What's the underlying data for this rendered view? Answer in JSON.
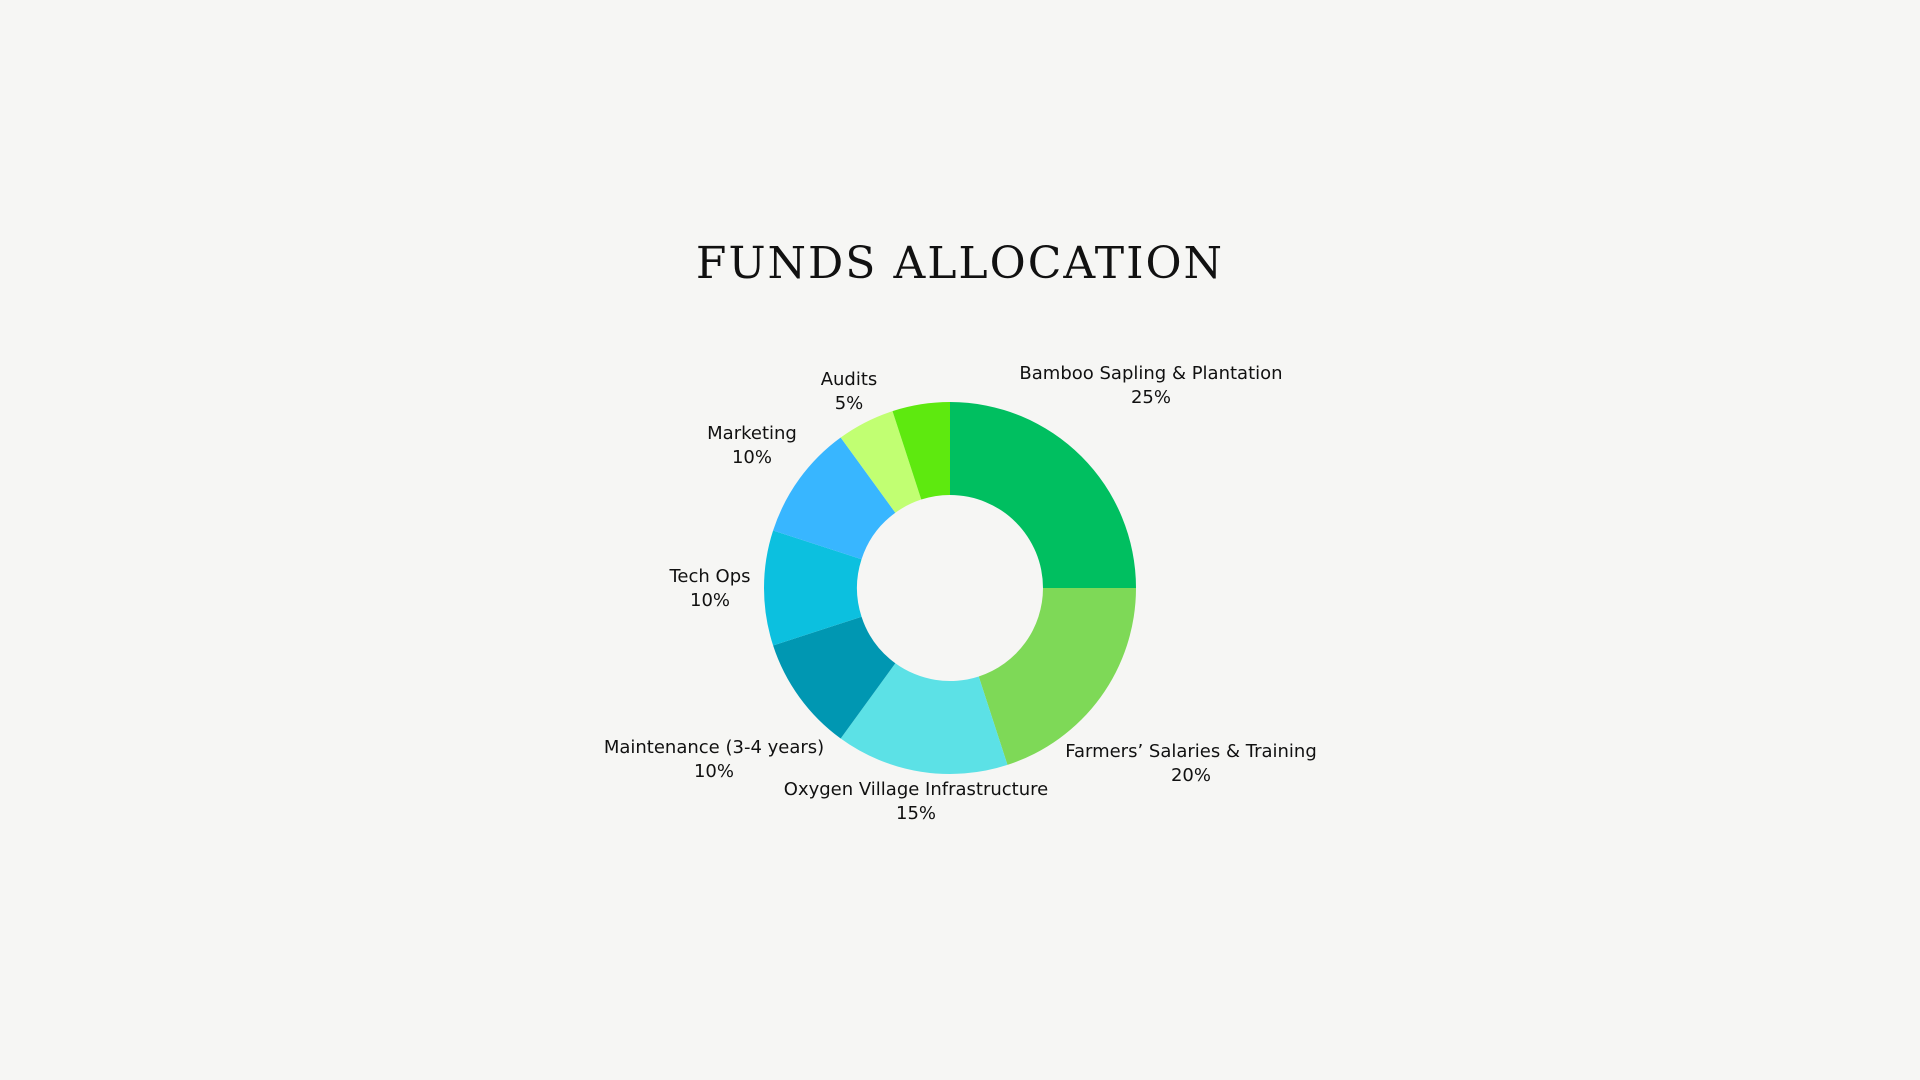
{
  "chart_data": {
    "type": "pie",
    "variant": "donut",
    "title": "FUNDS ALLOCATION",
    "legend": "none",
    "slices": [
      {
        "label": "Bamboo Sapling & Plantation",
        "value": 25,
        "value_label": "25%",
        "color": "#00bf60"
      },
      {
        "label": "Farmers’ Salaries & Training",
        "value": 20,
        "value_label": "20%",
        "color": "#7ed957"
      },
      {
        "label": "Oxygen Village Infrastructure",
        "value": 15,
        "value_label": "15%",
        "color": "#5ce1e6"
      },
      {
        "label": "Maintenance (3-4 years)",
        "value": 10,
        "value_label": "10%",
        "color": "#0097b2"
      },
      {
        "label": "Tech Ops",
        "value": 10,
        "value_label": "10%",
        "color": "#0cc0df"
      },
      {
        "label": "Marketing",
        "value": 10,
        "value_label": "10%",
        "color": "#38b6ff"
      },
      {
        "label": "Audits",
        "value": 5,
        "value_label": "5%",
        "color": "#c1ff72"
      },
      {
        "label": "",
        "value": 5,
        "value_label": "",
        "color": "#5ee90f"
      }
    ]
  }
}
